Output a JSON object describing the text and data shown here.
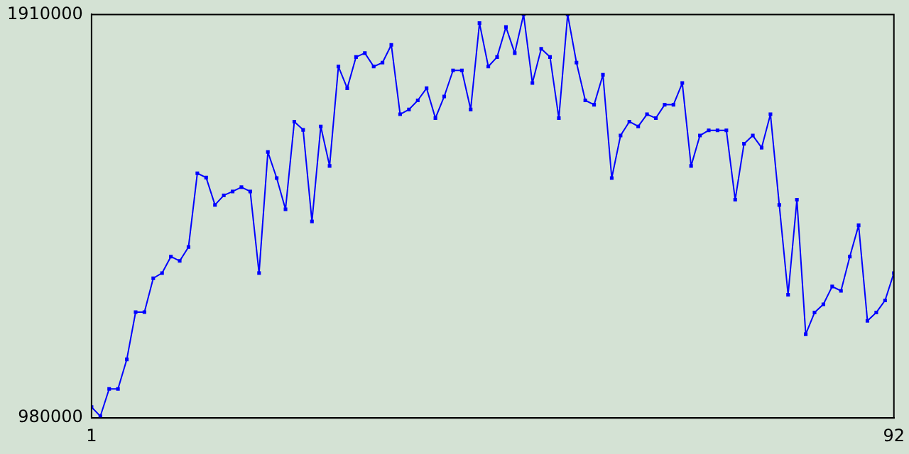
{
  "chart_data": {
    "type": "line",
    "x": [
      1,
      2,
      3,
      4,
      5,
      6,
      7,
      8,
      9,
      10,
      11,
      12,
      13,
      14,
      15,
      16,
      17,
      18,
      19,
      20,
      21,
      22,
      23,
      24,
      25,
      26,
      27,
      28,
      29,
      30,
      31,
      32,
      33,
      34,
      35,
      36,
      37,
      38,
      39,
      40,
      41,
      42,
      43,
      44,
      45,
      46,
      47,
      48,
      49,
      50,
      51,
      52,
      53,
      54,
      55,
      56,
      57,
      58,
      59,
      60,
      61,
      62,
      63,
      64,
      65,
      66,
      67,
      68,
      69,
      70,
      71,
      72,
      73,
      74,
      75,
      76,
      77,
      78,
      79,
      80,
      81,
      82,
      83,
      84,
      85,
      86,
      87,
      88,
      89,
      90,
      91,
      92
    ],
    "series": [
      {
        "color": "#0000ff",
        "values": [
          1005000,
          984000,
          1047000,
          1047000,
          1115000,
          1224000,
          1224000,
          1302000,
          1314000,
          1352000,
          1342000,
          1374000,
          1544000,
          1534000,
          1471000,
          1493000,
          1502000,
          1512000,
          1502000,
          1314000,
          1593000,
          1533000,
          1461000,
          1663000,
          1644000,
          1433000,
          1652000,
          1561000,
          1790000,
          1740000,
          1812000,
          1821000,
          1790000,
          1799000,
          1840000,
          1680000,
          1691000,
          1712000,
          1740000,
          1671000,
          1721000,
          1781000,
          1781000,
          1691000,
          1890000,
          1790000,
          1812000,
          1881000,
          1821000,
          1910000,
          1752000,
          1831000,
          1812000,
          1671000,
          1910000,
          1799000,
          1712000,
          1702000,
          1771000,
          1533000,
          1631000,
          1663000,
          1652000,
          1680000,
          1671000,
          1702000,
          1702000,
          1752000,
          1561000,
          1631000,
          1643000,
          1643000,
          1643000,
          1483000,
          1612000,
          1631000,
          1603000,
          1680000,
          1471000,
          1264000,
          1483000,
          1173000,
          1223000,
          1242000,
          1283000,
          1273000,
          1352000,
          1424000,
          1204000,
          1223000,
          1251000,
          1314000
        ]
      }
    ],
    "xlim": [
      1,
      92
    ],
    "xticks": [
      1,
      92
    ],
    "ylim": [
      980000,
      1910000
    ],
    "yticks": [
      980000,
      1910000
    ],
    "grid": false,
    "legend": false,
    "marker": "square",
    "line_style": "solid"
  }
}
